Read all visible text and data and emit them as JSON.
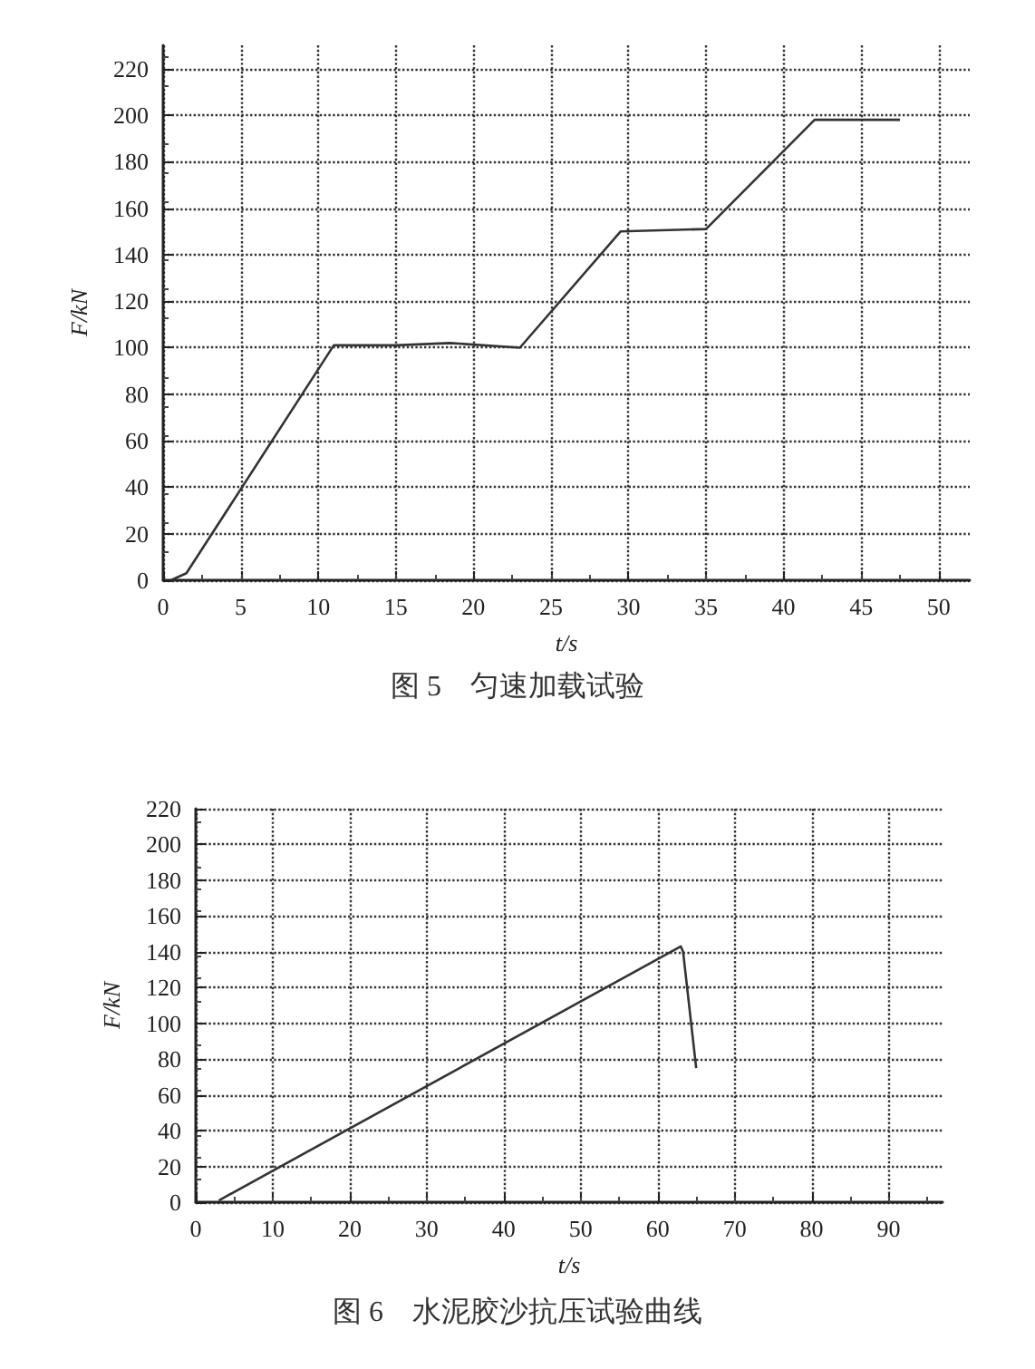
{
  "chart_data": [
    {
      "type": "line",
      "title": "图 5　匀速加载试验",
      "xlabel": "t/s",
      "ylabel": "F/kN",
      "marker": "none",
      "grid": true,
      "xlim": [
        0,
        52
      ],
      "ylim": [
        0,
        230
      ],
      "xticks": [
        0,
        5,
        10,
        15,
        20,
        25,
        30,
        35,
        40,
        45,
        50
      ],
      "yticks": [
        0,
        20,
        40,
        60,
        80,
        100,
        120,
        140,
        160,
        180,
        200,
        220
      ],
      "series": [
        {
          "color": "#333333",
          "x": [
            0.5,
            1.5,
            11,
            15,
            18.5,
            23,
            29.5,
            35,
            42,
            47.5
          ],
          "values": [
            0,
            3,
            101,
            101,
            102,
            100,
            150,
            151,
            198,
            198
          ]
        }
      ]
    },
    {
      "type": "line",
      "title": "图 6　水泥胶沙抗压试验曲线",
      "xlabel": "t/s",
      "ylabel": "F/kN",
      "marker": "none",
      "grid": true,
      "xlim": [
        0,
        97
      ],
      "ylim": [
        0,
        220
      ],
      "xticks": [
        0,
        10,
        20,
        30,
        40,
        50,
        60,
        70,
        80,
        90
      ],
      "yticks": [
        0,
        20,
        40,
        60,
        80,
        100,
        120,
        140,
        160,
        180,
        200,
        220
      ],
      "series": [
        {
          "color": "#333333",
          "x": [
            3,
            63,
            63.3,
            65
          ],
          "values": [
            1,
            143,
            140,
            75
          ]
        }
      ]
    }
  ]
}
